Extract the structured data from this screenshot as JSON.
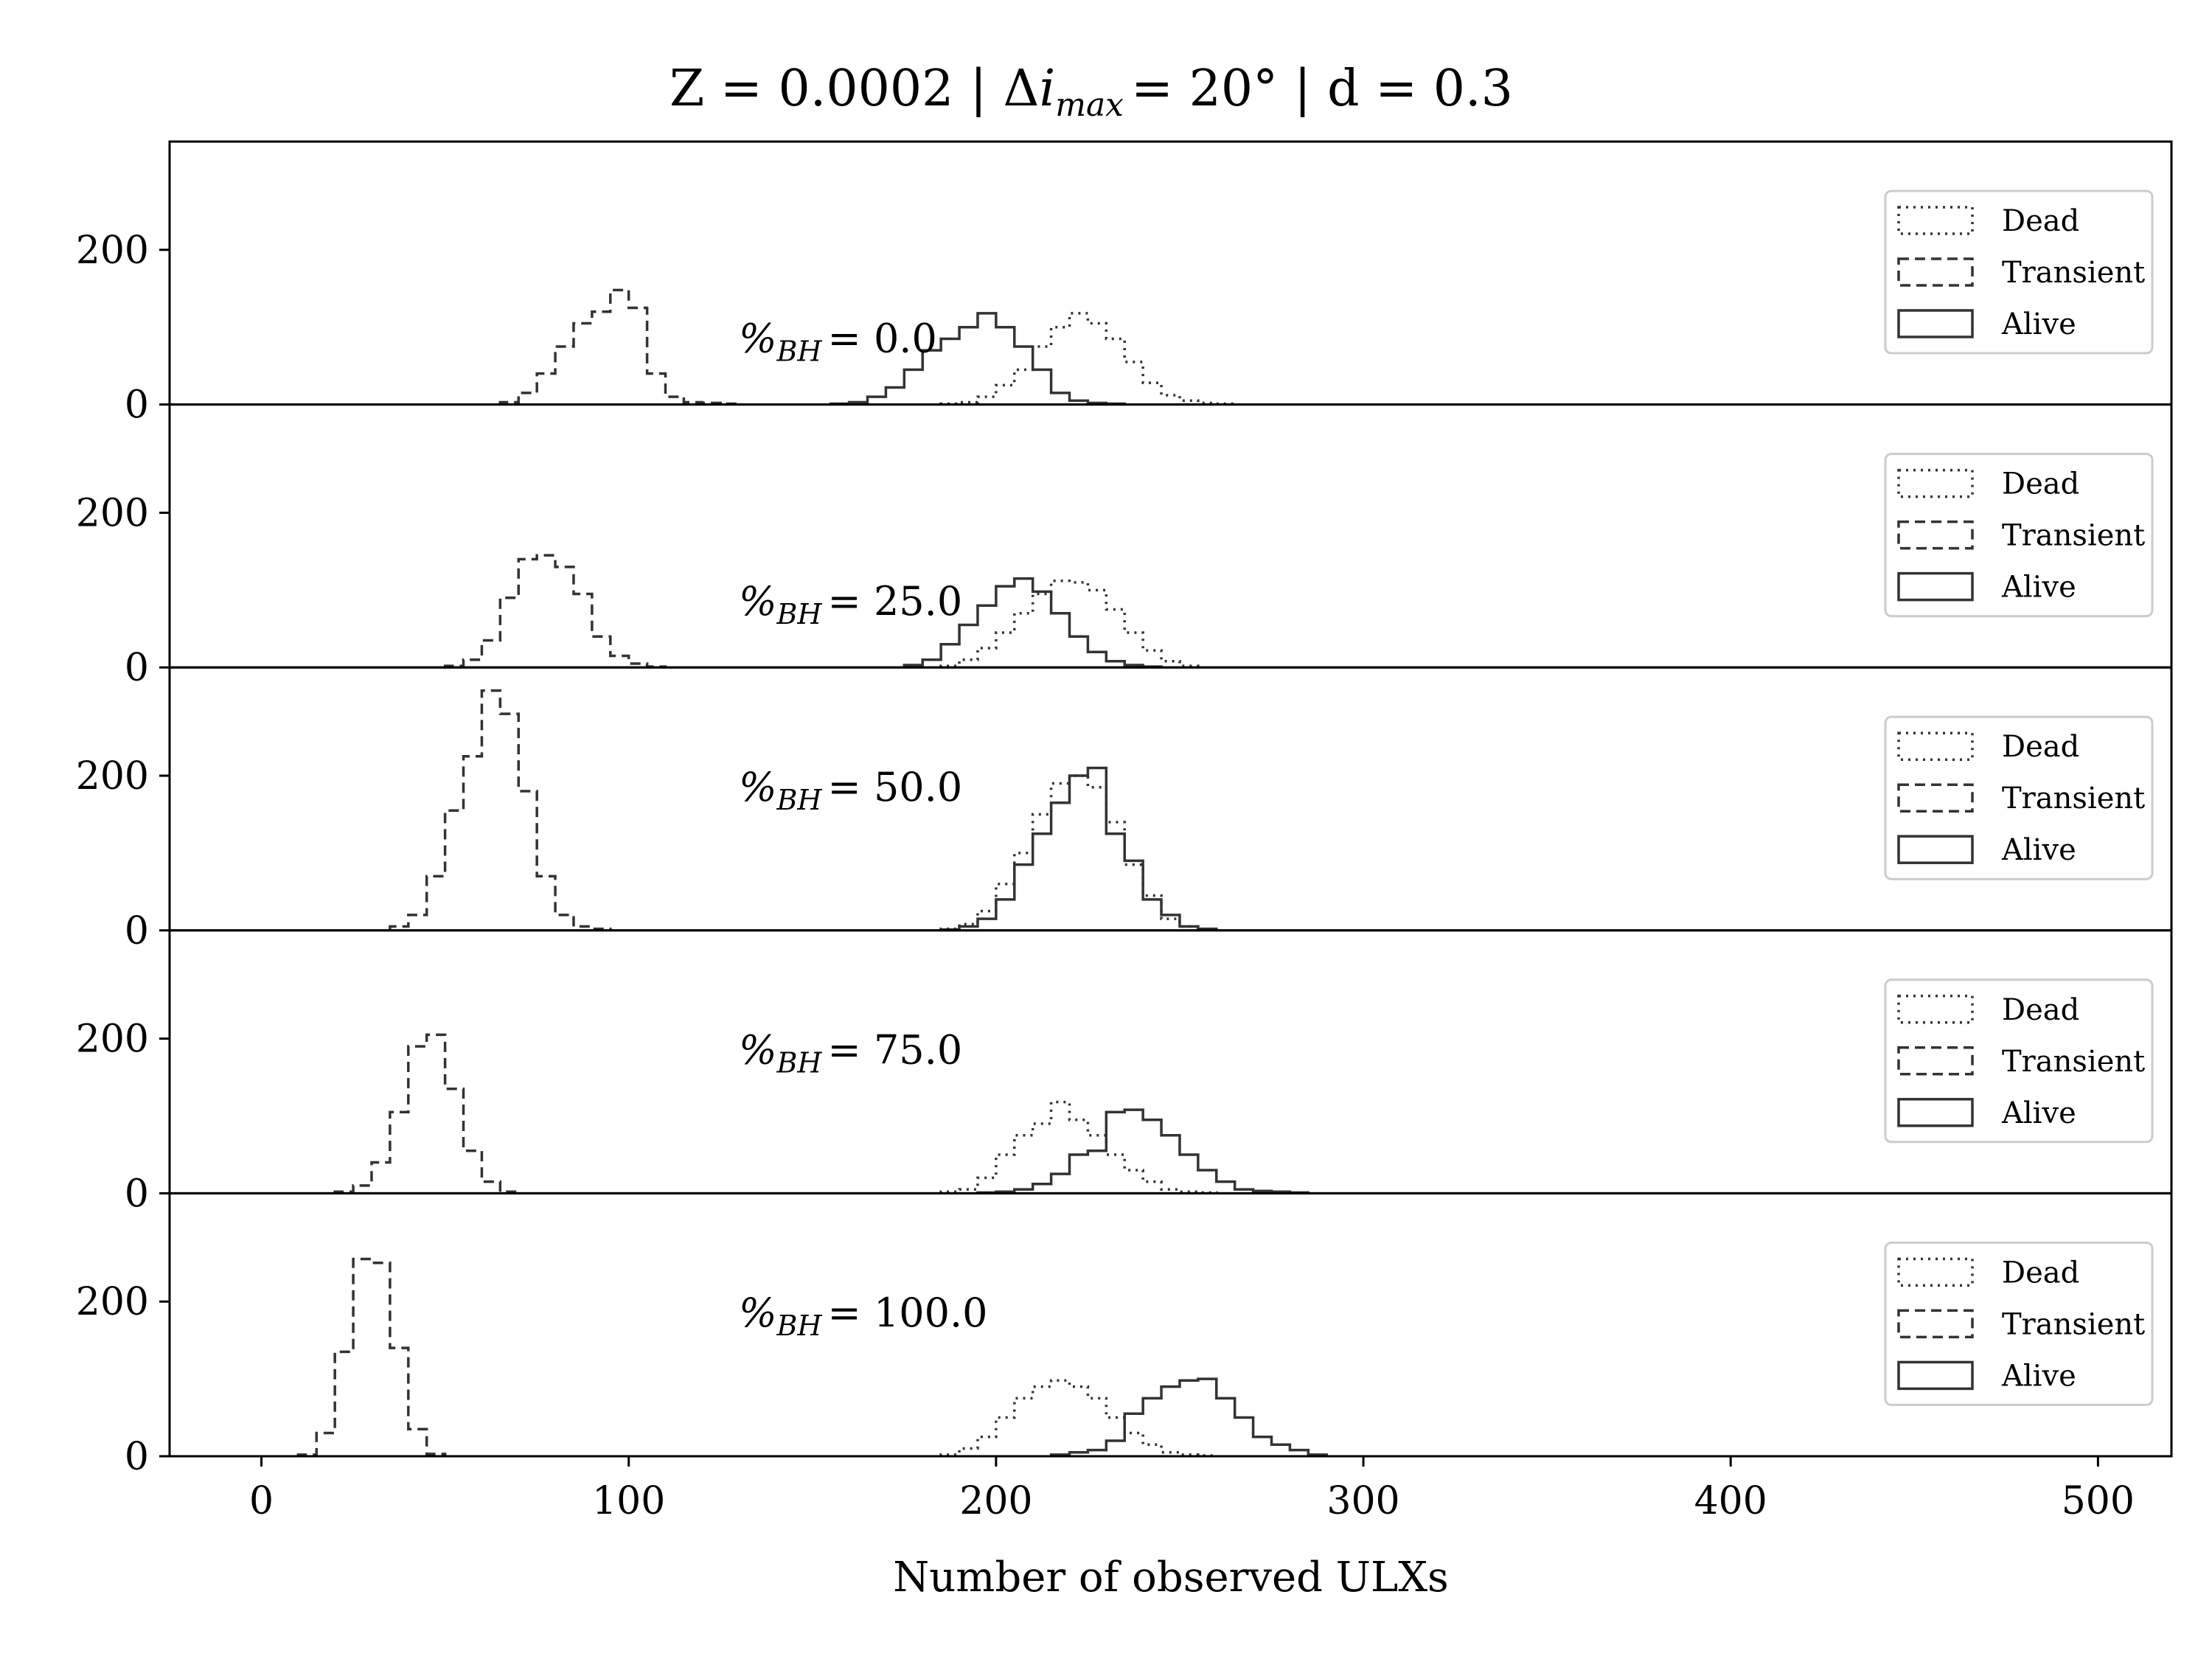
{
  "chart_data": {
    "type": "histogram-stack",
    "title": {
      "z_part": "Z = 0.0002",
      "sep1": "|",
      "delta": "Δ",
      "i": "i",
      "i_sub": "max",
      "imax_part": "= 20°",
      "sep2": "|",
      "d_part": "d = 0.3"
    },
    "xlabel": "Number of observed ULXs",
    "xlim": [
      -25,
      520
    ],
    "xticks": [
      0,
      100,
      200,
      300,
      400,
      500
    ],
    "xtick_labels": [
      "0",
      "100",
      "200",
      "300",
      "400",
      "500"
    ],
    "ylim": [
      0,
      340
    ],
    "yticks": [
      0,
      200
    ],
    "ytick_labels": [
      "0",
      "200"
    ],
    "bin_width": 5,
    "legend": {
      "position": "upper right",
      "entries": [
        {
          "label": "Dead",
          "style": "dotted"
        },
        {
          "label": "Transient",
          "style": "dashed"
        },
        {
          "label": "Alive",
          "style": "solid"
        }
      ]
    },
    "line_color": "#333333",
    "panels": [
      {
        "bh_prefix": "%",
        "bh_sub": "BH",
        "bh_value": "= 0.0",
        "series": {
          "Transient": {
            "start": 65,
            "values": [
              3,
              15,
              40,
              75,
              105,
              120,
              148,
              125,
              40,
              10,
              3,
              2,
              1
            ]
          },
          "Alive": {
            "start": 155,
            "values": [
              1,
              3,
              10,
              22,
              45,
              70,
              85,
              100,
              118,
              100,
              75,
              45,
              15,
              5,
              2,
              1
            ]
          },
          "Dead": {
            "start": 185,
            "values": [
              1,
              3,
              10,
              25,
              45,
              75,
              100,
              118,
              105,
              85,
              55,
              28,
              12,
              5,
              2,
              1
            ]
          }
        }
      },
      {
        "bh_prefix": "%",
        "bh_sub": "BH",
        "bh_value": "= 25.0",
        "series": {
          "Transient": {
            "start": 50,
            "values": [
              2,
              10,
              35,
              90,
              140,
              145,
              130,
              95,
              40,
              15,
              5,
              1
            ]
          },
          "Alive": {
            "start": 175,
            "values": [
              3,
              10,
              30,
              55,
              80,
              105,
              115,
              98,
              70,
              40,
              20,
              8,
              3,
              1
            ]
          },
          "Dead": {
            "start": 185,
            "values": [
              2,
              10,
              25,
              45,
              70,
              95,
              112,
              110,
              100,
              75,
              45,
              22,
              8,
              2
            ]
          }
        }
      },
      {
        "bh_prefix": "%",
        "bh_sub": "BH",
        "bh_value": "= 50.0",
        "series": {
          "Transient": {
            "start": 35,
            "values": [
              5,
              20,
              70,
              155,
              225,
              310,
              280,
              180,
              70,
              20,
              5,
              2
            ]
          },
          "Alive": {
            "start": 185,
            "values": [
              1,
              5,
              15,
              40,
              85,
              125,
              165,
              200,
              210,
              125,
              90,
              40,
              20,
              5,
              2
            ]
          },
          "Dead": {
            "start": 185,
            "values": [
              2,
              8,
              25,
              60,
              100,
              150,
              190,
              200,
              185,
              140,
              85,
              45,
              15,
              5,
              1
            ]
          }
        }
      },
      {
        "bh_prefix": "%",
        "bh_sub": "BH",
        "bh_value": "= 75.0",
        "series": {
          "Transient": {
            "start": 20,
            "values": [
              2,
              10,
              40,
              105,
              190,
              205,
              135,
              55,
              15,
              2
            ]
          },
          "Alive": {
            "start": 195,
            "values": [
              1,
              2,
              5,
              12,
              25,
              50,
              55,
              105,
              108,
              95,
              75,
              50,
              30,
              15,
              5,
              3,
              2,
              1
            ]
          },
          "Dead": {
            "start": 185,
            "values": [
              2,
              5,
              20,
              50,
              75,
              90,
              118,
              95,
              75,
              50,
              30,
              15,
              5,
              2,
              1
            ]
          }
        }
      },
      {
        "bh_prefix": "%",
        "bh_sub": "BH",
        "bh_value": "= 100.0",
        "series": {
          "Transient": {
            "start": 10,
            "values": [
              2,
              30,
              135,
              255,
              250,
              140,
              35,
              3
            ]
          },
          "Alive": {
            "start": 215,
            "values": [
              2,
              5,
              8,
              20,
              55,
              75,
              90,
              98,
              100,
              75,
              50,
              25,
              15,
              8,
              2
            ]
          },
          "Dead": {
            "start": 185,
            "values": [
              2,
              10,
              25,
              50,
              75,
              90,
              98,
              90,
              75,
              50,
              30,
              15,
              5,
              2,
              1
            ]
          }
        }
      }
    ]
  }
}
